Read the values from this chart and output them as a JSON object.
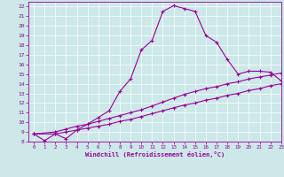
{
  "xlabel": "Windchill (Refroidissement éolien,°C)",
  "ylabel": "",
  "bg_color": "#cce8e8",
  "line_color": "#990099",
  "xlim": [
    -0.5,
    23
  ],
  "ylim": [
    8,
    22.5
  ],
  "xticks": [
    0,
    1,
    2,
    3,
    4,
    5,
    6,
    7,
    8,
    9,
    10,
    11,
    12,
    13,
    14,
    15,
    16,
    17,
    18,
    19,
    20,
    21,
    22,
    23
  ],
  "yticks": [
    8,
    9,
    10,
    11,
    12,
    13,
    14,
    15,
    16,
    17,
    18,
    19,
    20,
    21,
    22
  ],
  "curve1_x": [
    0,
    1,
    2,
    3,
    4,
    5,
    6,
    7,
    8,
    9,
    10,
    11,
    12,
    13,
    14,
    15,
    16,
    17,
    18,
    19,
    20,
    21,
    22,
    23
  ],
  "curve1_y": [
    8.8,
    8.1,
    8.8,
    8.3,
    9.2,
    9.8,
    10.5,
    11.2,
    13.2,
    14.5,
    17.5,
    18.5,
    21.5,
    22.1,
    21.8,
    21.5,
    19.0,
    18.3,
    16.5,
    15.0,
    15.3,
    15.3,
    15.2,
    14.3
  ],
  "curve2_x": [
    0,
    2,
    3,
    4,
    5,
    6,
    7,
    8,
    9,
    10,
    11,
    12,
    13,
    14,
    15,
    16,
    17,
    18,
    19,
    20,
    21,
    22,
    23
  ],
  "curve2_y": [
    8.8,
    9.0,
    9.3,
    9.6,
    9.8,
    10.1,
    10.4,
    10.7,
    11.0,
    11.3,
    11.7,
    12.1,
    12.5,
    12.9,
    13.2,
    13.5,
    13.7,
    14.0,
    14.2,
    14.5,
    14.7,
    14.9,
    15.1
  ],
  "curve3_x": [
    0,
    2,
    3,
    4,
    5,
    6,
    7,
    8,
    9,
    10,
    11,
    12,
    13,
    14,
    15,
    16,
    17,
    18,
    19,
    20,
    21,
    22,
    23
  ],
  "curve3_y": [
    8.8,
    8.8,
    9.0,
    9.2,
    9.4,
    9.6,
    9.8,
    10.1,
    10.3,
    10.6,
    10.9,
    11.2,
    11.5,
    11.8,
    12.0,
    12.3,
    12.5,
    12.8,
    13.0,
    13.3,
    13.5,
    13.8,
    14.0
  ]
}
